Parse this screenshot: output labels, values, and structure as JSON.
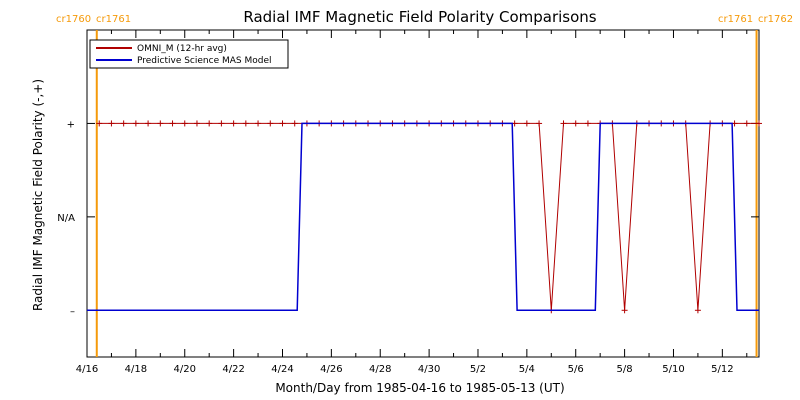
{
  "chart_data": {
    "type": "line",
    "title": "Radial IMF Magnetic Field Polarity Comparisons",
    "xlabel": "Month/Day from 1985-04-16 to 1985-05-13 (UT)",
    "ylabel": "Radial IMF Magnetic Field Polarity (-,+)",
    "x_tick_labels": [
      "4/16",
      "4/18",
      "4/20",
      "4/22",
      "4/24",
      "4/26",
      "4/28",
      "4/30",
      "5/2",
      "5/4",
      "5/6",
      "5/8",
      "5/10",
      "5/12"
    ],
    "x_range_days": [
      0,
      27.5
    ],
    "y_tick_labels": [
      "+",
      "N/A",
      "–"
    ],
    "y_tick_values": [
      1,
      0,
      -1
    ],
    "y_range": [
      -1.5,
      2.0
    ],
    "carrington_markers": [
      {
        "day": 0.4,
        "label_left": "cr1760",
        "label_right": "cr1761"
      },
      {
        "day": 27.4,
        "label_left": "cr1761",
        "label_right": "cr1762"
      }
    ],
    "series": [
      {
        "name": "OMNI_M (12-hr avg)",
        "color": "#b00000",
        "marker": "+",
        "points": [
          [
            0.5,
            1
          ],
          [
            1.0,
            1
          ],
          [
            1.5,
            1
          ],
          [
            2.0,
            1
          ],
          [
            2.5,
            1
          ],
          [
            3.0,
            1
          ],
          [
            3.5,
            1
          ],
          [
            4.0,
            1
          ],
          [
            4.5,
            1
          ],
          [
            5.0,
            1
          ],
          [
            5.5,
            1
          ],
          [
            6.0,
            1
          ],
          [
            6.5,
            1
          ],
          [
            7.0,
            1
          ],
          [
            7.5,
            1
          ],
          [
            8.0,
            1
          ],
          [
            8.5,
            1
          ],
          [
            9.0,
            1
          ],
          [
            9.5,
            1
          ],
          [
            10.0,
            1
          ],
          [
            10.5,
            1
          ],
          [
            11.0,
            1
          ],
          [
            11.5,
            1
          ],
          [
            12.0,
            1
          ],
          [
            12.5,
            1
          ],
          [
            13.0,
            1
          ],
          [
            13.5,
            1
          ],
          [
            14.0,
            1
          ],
          [
            14.5,
            1
          ],
          [
            15.0,
            1
          ],
          [
            15.5,
            1
          ],
          [
            16.0,
            1
          ],
          [
            16.5,
            1
          ],
          [
            17.0,
            1
          ],
          [
            17.5,
            1
          ],
          [
            18.0,
            1
          ],
          [
            18.5,
            1
          ],
          [
            19.0,
            -1
          ],
          [
            19.5,
            1
          ],
          [
            20.0,
            1
          ],
          [
            20.5,
            1
          ],
          [
            21.0,
            1
          ],
          [
            21.5,
            1
          ],
          [
            22.0,
            -1
          ],
          [
            22.5,
            1
          ],
          [
            23.0,
            1
          ],
          [
            23.5,
            1
          ],
          [
            24.0,
            1
          ],
          [
            24.5,
            1
          ],
          [
            25.0,
            -1
          ],
          [
            25.5,
            1
          ],
          [
            26.0,
            1
          ],
          [
            26.5,
            1
          ],
          [
            27.0,
            1
          ],
          [
            27.5,
            1
          ]
        ]
      },
      {
        "name": "Predictive Science MAS Model",
        "color": "#0000d0",
        "marker": "",
        "points": [
          [
            0.0,
            -1
          ],
          [
            8.6,
            -1
          ],
          [
            8.8,
            1
          ],
          [
            17.4,
            1
          ],
          [
            17.6,
            -1
          ],
          [
            20.8,
            -1
          ],
          [
            21.0,
            1
          ],
          [
            26.4,
            1
          ],
          [
            26.6,
            -1
          ],
          [
            27.5,
            -1
          ]
        ]
      }
    ],
    "legend": {
      "placement": "top-left"
    },
    "grid": false
  }
}
